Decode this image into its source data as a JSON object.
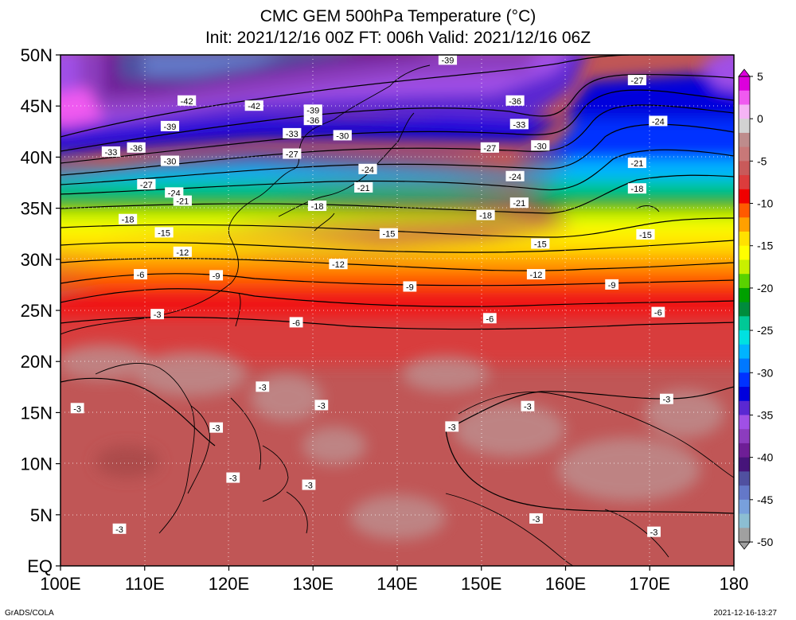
{
  "title": {
    "line1": "CMC GEM 500hPa Temperature (°C)",
    "line2": "Init: 2021/12/16 00Z  FT: 006h  Valid: 2021/12/16 06Z"
  },
  "axes": {
    "lat_labels": [
      "50N",
      "45N",
      "40N",
      "35N",
      "30N",
      "25N",
      "20N",
      "15N",
      "10N",
      "5N",
      "EQ"
    ],
    "lat_values": [
      50,
      45,
      40,
      35,
      30,
      25,
      20,
      15,
      10,
      5,
      0
    ],
    "lon_labels": [
      "100E",
      "110E",
      "120E",
      "130E",
      "140E",
      "150E",
      "160E",
      "170E",
      "180"
    ],
    "lon_values": [
      100,
      110,
      120,
      130,
      140,
      150,
      160,
      170,
      180
    ],
    "lon_range": [
      100,
      180
    ],
    "lat_range": [
      0,
      50
    ]
  },
  "colorbar": {
    "labels": [
      "5",
      "0",
      "-5",
      "-10",
      "-15",
      "-20",
      "-25",
      "-30",
      "-35",
      "-40",
      "-45",
      "-50"
    ],
    "values": [
      5,
      0,
      -5,
      -10,
      -15,
      -20,
      -25,
      -30,
      -35,
      -40,
      -45,
      -50
    ],
    "range": [
      -50,
      5
    ],
    "colors": [
      "#dc00dc",
      "#f05af0",
      "#f5b4f5",
      "#d2d2d2",
      "#be8c8c",
      "#c87878",
      "#c85a5a",
      "#dc3c3c",
      "#f00000",
      "#ff5a00",
      "#ffa000",
      "#ffe100",
      "#ffff00",
      "#c8f000",
      "#5ad200",
      "#00a000",
      "#008c3c",
      "#00c896",
      "#00e1e1",
      "#00b4ff",
      "#0078ff",
      "#0032ff",
      "#0000dc",
      "#5a28d2",
      "#a050e6",
      "#8c3cbe",
      "#6e1e96",
      "#46147a",
      "#5050a0",
      "#6478c8",
      "#78a0dc",
      "#8cbed2",
      "#a0a0a0"
    ]
  },
  "contour_labels": [
    {
      "text": "-39",
      "lon": 146,
      "lat": 49.5
    },
    {
      "text": "-42",
      "lon": 115,
      "lat": 45.5
    },
    {
      "text": "-42",
      "lon": 123,
      "lat": 45
    },
    {
      "text": "-39",
      "lon": 130,
      "lat": 44.6
    },
    {
      "text": "-36",
      "lon": 130,
      "lat": 43.6
    },
    {
      "text": "-39",
      "lon": 113,
      "lat": 43
    },
    {
      "text": "-36",
      "lon": 109,
      "lat": 40.9
    },
    {
      "text": "-33",
      "lon": 106,
      "lat": 40.5
    },
    {
      "text": "-33",
      "lon": 127.5,
      "lat": 42.3
    },
    {
      "text": "-30",
      "lon": 133.5,
      "lat": 42.1
    },
    {
      "text": "-27",
      "lon": 127.5,
      "lat": 40.3
    },
    {
      "text": "-30",
      "lon": 113,
      "lat": 39.6
    },
    {
      "text": "-24",
      "lon": 136.5,
      "lat": 38.8
    },
    {
      "text": "-27",
      "lon": 110.2,
      "lat": 37.3
    },
    {
      "text": "-24",
      "lon": 113.5,
      "lat": 36.5
    },
    {
      "text": "-21",
      "lon": 114.5,
      "lat": 35.7
    },
    {
      "text": "-21",
      "lon": 136,
      "lat": 37
    },
    {
      "text": "-18",
      "lon": 108,
      "lat": 33.9
    },
    {
      "text": "-18",
      "lon": 130.5,
      "lat": 35.2
    },
    {
      "text": "-15",
      "lon": 112.3,
      "lat": 32.6
    },
    {
      "text": "-15",
      "lon": 139,
      "lat": 32.5
    },
    {
      "text": "-12",
      "lon": 114.5,
      "lat": 30.7
    },
    {
      "text": "-12",
      "lon": 133,
      "lat": 29.5
    },
    {
      "text": "-6",
      "lon": 109.5,
      "lat": 28.5
    },
    {
      "text": "-9",
      "lon": 118.5,
      "lat": 28.4
    },
    {
      "text": "-9",
      "lon": 141.5,
      "lat": 27.3
    },
    {
      "text": "-3",
      "lon": 111.5,
      "lat": 24.6
    },
    {
      "text": "-6",
      "lon": 128,
      "lat": 23.8
    },
    {
      "text": "-6",
      "lon": 151,
      "lat": 24.2
    },
    {
      "text": "-3",
      "lon": 124,
      "lat": 17.5
    },
    {
      "text": "-3",
      "lon": 102,
      "lat": 15.4
    },
    {
      "text": "-3",
      "lon": 131,
      "lat": 15.7
    },
    {
      "text": "-3",
      "lon": 118.5,
      "lat": 13.5
    },
    {
      "text": "-3",
      "lon": 146.5,
      "lat": 13.6
    },
    {
      "text": "-3",
      "lon": 120.5,
      "lat": 8.6
    },
    {
      "text": "-3",
      "lon": 129.5,
      "lat": 7.9
    },
    {
      "text": "-3",
      "lon": 107,
      "lat": 3.6
    },
    {
      "text": "-3",
      "lon": 156.5,
      "lat": 4.6
    },
    {
      "text": "-3",
      "lon": 170.5,
      "lat": 3.3
    },
    {
      "text": "-3",
      "lon": 155.5,
      "lat": 15.6
    },
    {
      "text": "-3",
      "lon": 172,
      "lat": 16.3
    },
    {
      "text": "-36",
      "lon": 154,
      "lat": 45.5
    },
    {
      "text": "-33",
      "lon": 154.5,
      "lat": 43.2
    },
    {
      "text": "-30",
      "lon": 157,
      "lat": 41.1
    },
    {
      "text": "-27",
      "lon": 151,
      "lat": 40.9
    },
    {
      "text": "-24",
      "lon": 154,
      "lat": 38.1
    },
    {
      "text": "-21",
      "lon": 154.5,
      "lat": 35.5
    },
    {
      "text": "-18",
      "lon": 150.5,
      "lat": 34.3
    },
    {
      "text": "-15",
      "lon": 157,
      "lat": 31.5
    },
    {
      "text": "-12",
      "lon": 156.5,
      "lat": 28.5
    },
    {
      "text": "-9",
      "lon": 165.5,
      "lat": 27.5
    },
    {
      "text": "-6",
      "lon": 171,
      "lat": 24.8
    },
    {
      "text": "-27",
      "lon": 168.5,
      "lat": 47.5
    },
    {
      "text": "-24",
      "lon": 171,
      "lat": 43.5
    },
    {
      "text": "-21",
      "lon": 168.5,
      "lat": 39.4
    },
    {
      "text": "-18",
      "lon": 168.5,
      "lat": 36.9
    },
    {
      "text": "-15",
      "lon": 169.5,
      "lat": 32.4
    }
  ],
  "footer": {
    "left": "GrADS/COLA",
    "right": "2021-12-16-13:27"
  }
}
